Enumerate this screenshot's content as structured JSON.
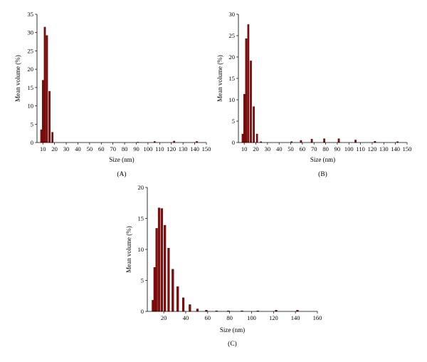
{
  "colors": {
    "bar": "#8b0a0a",
    "axis": "#000000"
  },
  "chart_data": [
    {
      "id": "A",
      "type": "bar",
      "caption": "(A)",
      "xlabel": "Size (nm)",
      "ylabel": "Mean volume (%)",
      "xlim": [
        5,
        150
      ],
      "ylim": [
        0,
        35
      ],
      "xticks": [
        10,
        20,
        30,
        40,
        50,
        60,
        70,
        80,
        90,
        100,
        110,
        120,
        130,
        140,
        150
      ],
      "yticks": [
        0,
        5,
        10,
        15,
        20,
        25,
        30,
        35
      ],
      "bar_width": 1.4,
      "x": [
        8.7,
        10.1,
        11.7,
        13.5,
        15.7,
        18.2,
        91.3,
        105.7,
        122.4,
        141.8
      ],
      "values": [
        3.5,
        17.0,
        31.5,
        29.2,
        14.0,
        2.8,
        0.1,
        0.3,
        0.4,
        0.3
      ]
    },
    {
      "id": "B",
      "type": "bar",
      "caption": "(B)",
      "xlabel": "Size (nm)",
      "ylabel": "Mean volume (%)",
      "xlim": [
        5,
        150
      ],
      "ylim": [
        0,
        30
      ],
      "xticks": [
        10,
        20,
        30,
        40,
        50,
        60,
        70,
        80,
        90,
        100,
        110,
        120,
        130,
        140,
        150
      ],
      "yticks": [
        0,
        5,
        10,
        15,
        20,
        25,
        30
      ],
      "bar_width": 1.4,
      "x": [
        8.7,
        10.1,
        11.7,
        13.5,
        15.7,
        18.2,
        21.0,
        24.4,
        50.7,
        58.8,
        68.1,
        78.8,
        91.3,
        105.7,
        122.4,
        141.8
      ],
      "values": [
        2.0,
        11.3,
        24.3,
        27.6,
        19.1,
        8.4,
        2.0,
        0.2,
        0.2,
        0.5,
        0.8,
        0.9,
        0.9,
        0.6,
        0.3,
        0.2
      ]
    },
    {
      "id": "C",
      "type": "bar",
      "caption": "(C)",
      "xlabel": "Size (nm)",
      "ylabel": "Mean volume (%)",
      "xlim": [
        5,
        160
      ],
      "ylim": [
        0,
        20
      ],
      "xticks": [
        20,
        40,
        60,
        80,
        100,
        120,
        140,
        160
      ],
      "yticks": [
        0,
        5,
        10,
        15,
        20
      ],
      "bar_width": 1.8,
      "x": [
        10.1,
        11.7,
        13.5,
        15.7,
        18.2,
        21.0,
        24.4,
        28.2,
        32.7,
        37.8,
        43.8,
        50.7,
        58.8,
        68.1,
        78.8,
        91.3,
        105.7,
        122.4,
        141.8
      ],
      "values": [
        1.8,
        7.1,
        13.4,
        16.7,
        16.6,
        13.9,
        10.2,
        6.8,
        4.0,
        2.2,
        1.1,
        0.4,
        0.2,
        0.1,
        0.1,
        0.1,
        0.1,
        0.2,
        0.2
      ]
    }
  ]
}
